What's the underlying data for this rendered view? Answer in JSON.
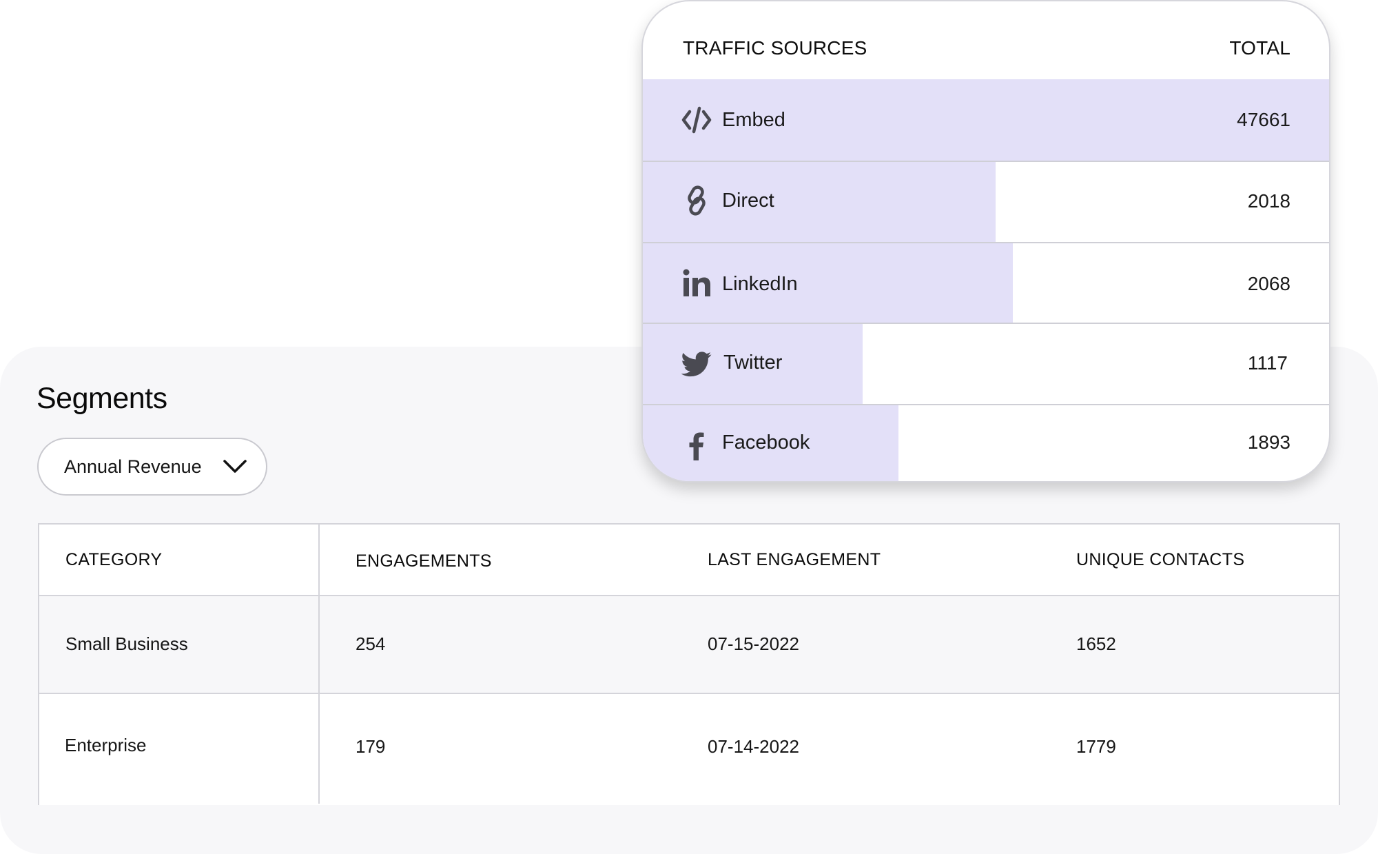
{
  "segments": {
    "title": "Segments",
    "dropdown": {
      "selected": "Annual Revenue",
      "icon": "chevron-down-icon"
    },
    "table": {
      "headers": [
        "CATEGORY",
        "ENGAGEMENTS",
        "LAST ENGAGEMENT",
        "UNIQUE CONTACTS"
      ],
      "rows": [
        [
          "Small Business",
          "254",
          "07-15-2022",
          "1652"
        ],
        [
          "Enterprise",
          "179",
          "07-14-2022",
          "1779"
        ]
      ]
    }
  },
  "traffic": {
    "header": {
      "left": "TRAFFIC SOURCES",
      "right": "TOTAL"
    },
    "bar_color": "#e3e0f8",
    "rows": [
      {
        "label": "Embed",
        "value": "47661",
        "icon": "code-icon",
        "fill": 1.0
      },
      {
        "label": "Direct",
        "value": "2018",
        "icon": "link-icon",
        "fill": 0.514
      },
      {
        "label": "LinkedIn",
        "value": "2068",
        "icon": "linkedin-icon",
        "fill": 0.539
      },
      {
        "label": "Twitter",
        "value": "1117",
        "icon": "twitter-icon",
        "fill": 0.32
      },
      {
        "label": "Facebook",
        "value": "1893",
        "icon": "facebook-icon",
        "fill": 0.372
      }
    ]
  }
}
